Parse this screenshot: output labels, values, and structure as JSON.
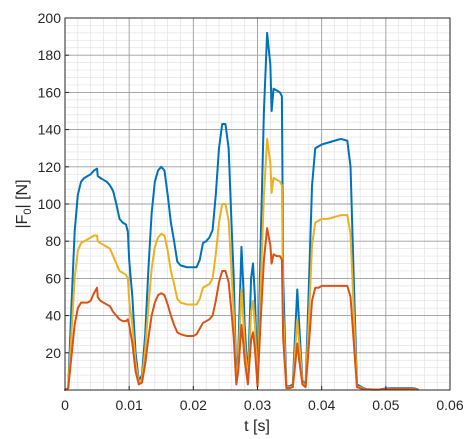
{
  "chart_data": {
    "type": "line",
    "xlabel": "t [s]",
    "ylabel_main": "|F",
    "ylabel_sub": "0",
    "ylabel_tail": "| [N]",
    "xlim": [
      0,
      0.06
    ],
    "ylim": [
      0,
      200
    ],
    "x_ticks": [
      0,
      0.01,
      0.02,
      0.03,
      0.04,
      0.05,
      0.06
    ],
    "x_tick_labels": [
      "0",
      "0.01",
      "0.02",
      "0.03",
      "0.04",
      "0.05",
      "0.06"
    ],
    "y_ticks": [
      20,
      40,
      60,
      80,
      100,
      120,
      140,
      160,
      180,
      200
    ],
    "y_tick_labels": [
      "20",
      "40",
      "60",
      "80",
      "100",
      "120",
      "140",
      "160",
      "180",
      "200"
    ],
    "grid": "major and minor",
    "legend": "none",
    "series": [
      {
        "color": "#0072BD",
        "points": [
          [
            0,
            0
          ],
          [
            0.0005,
            1
          ],
          [
            0.001,
            45
          ],
          [
            0.0015,
            85
          ],
          [
            0.002,
            105
          ],
          [
            0.0025,
            112
          ],
          [
            0.003,
            114
          ],
          [
            0.0035,
            115
          ],
          [
            0.004,
            116
          ],
          [
            0.0045,
            118
          ],
          [
            0.005,
            119
          ],
          [
            0.0051,
            115
          ],
          [
            0.0055,
            114
          ],
          [
            0.006,
            113
          ],
          [
            0.0065,
            112
          ],
          [
            0.007,
            110
          ],
          [
            0.0075,
            107
          ],
          [
            0.008,
            100
          ],
          [
            0.0085,
            92
          ],
          [
            0.009,
            90
          ],
          [
            0.0095,
            89
          ],
          [
            0.0098,
            85
          ],
          [
            0.01,
            70
          ],
          [
            0.0105,
            50
          ],
          [
            0.011,
            20
          ],
          [
            0.0115,
            5
          ],
          [
            0.012,
            8
          ],
          [
            0.0125,
            30
          ],
          [
            0.013,
            65
          ],
          [
            0.0135,
            95
          ],
          [
            0.014,
            112
          ],
          [
            0.0145,
            118
          ],
          [
            0.015,
            120
          ],
          [
            0.0155,
            118
          ],
          [
            0.016,
            105
          ],
          [
            0.0165,
            90
          ],
          [
            0.017,
            80
          ],
          [
            0.0175,
            69
          ],
          [
            0.018,
            67
          ],
          [
            0.019,
            66
          ],
          [
            0.02,
            66
          ],
          [
            0.0205,
            66
          ],
          [
            0.021,
            70
          ],
          [
            0.0215,
            79
          ],
          [
            0.022,
            80
          ],
          [
            0.0225,
            82
          ],
          [
            0.023,
            86
          ],
          [
            0.0235,
            105
          ],
          [
            0.024,
            130
          ],
          [
            0.0245,
            143
          ],
          [
            0.025,
            143
          ],
          [
            0.0255,
            130
          ],
          [
            0.026,
            85
          ],
          [
            0.0263,
            60
          ],
          [
            0.0267,
            5
          ],
          [
            0.027,
            20
          ],
          [
            0.0275,
            77
          ],
          [
            0.0278,
            55
          ],
          [
            0.028,
            35
          ],
          [
            0.0285,
            5
          ],
          [
            0.029,
            60
          ],
          [
            0.0293,
            68
          ],
          [
            0.0296,
            50
          ],
          [
            0.03,
            3
          ],
          [
            0.0305,
            80
          ],
          [
            0.031,
            150
          ],
          [
            0.0315,
            192
          ],
          [
            0.032,
            175
          ],
          [
            0.0322,
            150
          ],
          [
            0.0325,
            162
          ],
          [
            0.033,
            161
          ],
          [
            0.0335,
            160
          ],
          [
            0.0338,
            158
          ],
          [
            0.034,
            60
          ],
          [
            0.0345,
            2
          ],
          [
            0.035,
            2
          ],
          [
            0.0355,
            3
          ],
          [
            0.036,
            40
          ],
          [
            0.0362,
            54
          ],
          [
            0.0365,
            35
          ],
          [
            0.037,
            5
          ],
          [
            0.0375,
            3
          ],
          [
            0.038,
            55
          ],
          [
            0.0385,
            110
          ],
          [
            0.039,
            130
          ],
          [
            0.0395,
            131
          ],
          [
            0.04,
            132
          ],
          [
            0.041,
            133
          ],
          [
            0.042,
            134
          ],
          [
            0.043,
            135
          ],
          [
            0.044,
            134
          ],
          [
            0.0445,
            120
          ],
          [
            0.045,
            60
          ],
          [
            0.0455,
            3
          ],
          [
            0.046,
            2
          ],
          [
            0.0465,
            1
          ],
          [
            0.047,
            0.5
          ],
          [
            0.048,
            0.3
          ],
          [
            0.049,
            0.3
          ],
          [
            0.05,
            0.8
          ],
          [
            0.051,
            1
          ],
          [
            0.052,
            1
          ],
          [
            0.053,
            1
          ],
          [
            0.054,
            1
          ],
          [
            0.0545,
            0.8
          ],
          [
            0.055,
            0.3
          ]
        ]
      },
      {
        "color": "#EDB120",
        "points": [
          [
            0,
            0
          ],
          [
            0.0005,
            1
          ],
          [
            0.001,
            30
          ],
          [
            0.0015,
            60
          ],
          [
            0.002,
            75
          ],
          [
            0.0025,
            79
          ],
          [
            0.003,
            80
          ],
          [
            0.0035,
            81
          ],
          [
            0.004,
            82
          ],
          [
            0.0045,
            83
          ],
          [
            0.005,
            83
          ],
          [
            0.0051,
            80
          ],
          [
            0.0055,
            79
          ],
          [
            0.006,
            78
          ],
          [
            0.0065,
            77
          ],
          [
            0.007,
            76
          ],
          [
            0.0075,
            72
          ],
          [
            0.008,
            68
          ],
          [
            0.0085,
            64
          ],
          [
            0.009,
            63
          ],
          [
            0.0095,
            62
          ],
          [
            0.0098,
            60
          ],
          [
            0.01,
            48
          ],
          [
            0.0105,
            35
          ],
          [
            0.011,
            15
          ],
          [
            0.0115,
            4
          ],
          [
            0.012,
            6
          ],
          [
            0.0125,
            22
          ],
          [
            0.013,
            45
          ],
          [
            0.0135,
            65
          ],
          [
            0.014,
            77
          ],
          [
            0.0145,
            82
          ],
          [
            0.015,
            84
          ],
          [
            0.0155,
            83
          ],
          [
            0.016,
            75
          ],
          [
            0.0165,
            64
          ],
          [
            0.017,
            57
          ],
          [
            0.0175,
            49
          ],
          [
            0.018,
            47
          ],
          [
            0.019,
            46
          ],
          [
            0.02,
            46
          ],
          [
            0.0205,
            46
          ],
          [
            0.021,
            49
          ],
          [
            0.0215,
            55
          ],
          [
            0.022,
            56
          ],
          [
            0.0225,
            57
          ],
          [
            0.023,
            60
          ],
          [
            0.0235,
            73
          ],
          [
            0.024,
            90
          ],
          [
            0.0245,
            100
          ],
          [
            0.025,
            100
          ],
          [
            0.0255,
            91
          ],
          [
            0.026,
            60
          ],
          [
            0.0263,
            42
          ],
          [
            0.0267,
            4
          ],
          [
            0.027,
            15
          ],
          [
            0.0275,
            54
          ],
          [
            0.0278,
            38
          ],
          [
            0.028,
            25
          ],
          [
            0.0285,
            4
          ],
          [
            0.029,
            42
          ],
          [
            0.0293,
            48
          ],
          [
            0.0296,
            35
          ],
          [
            0.03,
            2
          ],
          [
            0.0305,
            56
          ],
          [
            0.031,
            105
          ],
          [
            0.0315,
            135
          ],
          [
            0.032,
            122
          ],
          [
            0.0322,
            106
          ],
          [
            0.0325,
            114
          ],
          [
            0.033,
            113
          ],
          [
            0.0335,
            112
          ],
          [
            0.0338,
            110
          ],
          [
            0.034,
            42
          ],
          [
            0.0345,
            1.5
          ],
          [
            0.035,
            1.5
          ],
          [
            0.0355,
            2
          ],
          [
            0.036,
            28
          ],
          [
            0.0362,
            38
          ],
          [
            0.0365,
            25
          ],
          [
            0.037,
            4
          ],
          [
            0.0375,
            2
          ],
          [
            0.038,
            38
          ],
          [
            0.0385,
            78
          ],
          [
            0.039,
            90
          ],
          [
            0.0395,
            91
          ],
          [
            0.04,
            92
          ],
          [
            0.041,
            92
          ],
          [
            0.042,
            93
          ],
          [
            0.043,
            94
          ],
          [
            0.044,
            94
          ],
          [
            0.0445,
            84
          ],
          [
            0.045,
            42
          ],
          [
            0.0455,
            2
          ],
          [
            0.046,
            1.5
          ],
          [
            0.0465,
            0.7
          ],
          [
            0.047,
            0.4
          ],
          [
            0.048,
            0.2
          ],
          [
            0.049,
            0.2
          ],
          [
            0.05,
            0.5
          ],
          [
            0.051,
            0.7
          ],
          [
            0.052,
            0.7
          ],
          [
            0.053,
            0.7
          ],
          [
            0.054,
            0.7
          ],
          [
            0.0545,
            0.5
          ],
          [
            0.055,
            0.2
          ]
        ]
      },
      {
        "color": "#D95319",
        "points": [
          [
            0,
            0
          ],
          [
            0.0005,
            1
          ],
          [
            0.001,
            18
          ],
          [
            0.0015,
            35
          ],
          [
            0.002,
            44
          ],
          [
            0.0025,
            47
          ],
          [
            0.003,
            47
          ],
          [
            0.0035,
            47
          ],
          [
            0.004,
            48
          ],
          [
            0.0045,
            52
          ],
          [
            0.005,
            55
          ],
          [
            0.0051,
            50
          ],
          [
            0.0055,
            48
          ],
          [
            0.006,
            47
          ],
          [
            0.0065,
            46
          ],
          [
            0.007,
            45
          ],
          [
            0.0075,
            42
          ],
          [
            0.008,
            40
          ],
          [
            0.0085,
            38
          ],
          [
            0.009,
            37
          ],
          [
            0.0095,
            37
          ],
          [
            0.0098,
            38
          ],
          [
            0.01,
            35
          ],
          [
            0.0105,
            25
          ],
          [
            0.011,
            10
          ],
          [
            0.0115,
            3
          ],
          [
            0.012,
            4
          ],
          [
            0.0125,
            14
          ],
          [
            0.013,
            28
          ],
          [
            0.0135,
            40
          ],
          [
            0.014,
            47
          ],
          [
            0.0145,
            51
          ],
          [
            0.015,
            52
          ],
          [
            0.0155,
            51
          ],
          [
            0.016,
            46
          ],
          [
            0.0165,
            40
          ],
          [
            0.017,
            35
          ],
          [
            0.0175,
            31
          ],
          [
            0.018,
            30
          ],
          [
            0.019,
            29
          ],
          [
            0.02,
            29
          ],
          [
            0.0205,
            30
          ],
          [
            0.021,
            33
          ],
          [
            0.0215,
            36
          ],
          [
            0.022,
            37
          ],
          [
            0.0225,
            38
          ],
          [
            0.023,
            40
          ],
          [
            0.0235,
            48
          ],
          [
            0.024,
            58
          ],
          [
            0.0245,
            64
          ],
          [
            0.025,
            64
          ],
          [
            0.0255,
            58
          ],
          [
            0.026,
            40
          ],
          [
            0.0263,
            28
          ],
          [
            0.0267,
            3
          ],
          [
            0.027,
            10
          ],
          [
            0.0275,
            35
          ],
          [
            0.0278,
            25
          ],
          [
            0.028,
            16
          ],
          [
            0.0285,
            3
          ],
          [
            0.029,
            27
          ],
          [
            0.0293,
            31
          ],
          [
            0.0296,
            22
          ],
          [
            0.03,
            2
          ],
          [
            0.0305,
            38
          ],
          [
            0.031,
            70
          ],
          [
            0.0315,
            87
          ],
          [
            0.032,
            78
          ],
          [
            0.0322,
            68
          ],
          [
            0.0325,
            73
          ],
          [
            0.033,
            72
          ],
          [
            0.0335,
            72
          ],
          [
            0.0338,
            70
          ],
          [
            0.034,
            28
          ],
          [
            0.0345,
            1
          ],
          [
            0.035,
            1
          ],
          [
            0.0355,
            1.5
          ],
          [
            0.036,
            18
          ],
          [
            0.0362,
            25
          ],
          [
            0.0365,
            16
          ],
          [
            0.037,
            3
          ],
          [
            0.0375,
            1.5
          ],
          [
            0.038,
            24
          ],
          [
            0.0385,
            48
          ],
          [
            0.039,
            55
          ],
          [
            0.0395,
            55
          ],
          [
            0.04,
            56
          ],
          [
            0.041,
            56
          ],
          [
            0.042,
            56
          ],
          [
            0.043,
            56
          ],
          [
            0.044,
            56
          ],
          [
            0.0445,
            50
          ],
          [
            0.045,
            26
          ],
          [
            0.0455,
            1.5
          ],
          [
            0.046,
            1
          ],
          [
            0.0465,
            0.5
          ],
          [
            0.047,
            0.3
          ],
          [
            0.048,
            0.2
          ],
          [
            0.049,
            0.2
          ],
          [
            0.05,
            0.4
          ],
          [
            0.051,
            0.5
          ],
          [
            0.052,
            0.5
          ],
          [
            0.053,
            0.5
          ],
          [
            0.054,
            0.5
          ],
          [
            0.0545,
            0.4
          ],
          [
            0.055,
            0.2
          ]
        ]
      }
    ]
  }
}
